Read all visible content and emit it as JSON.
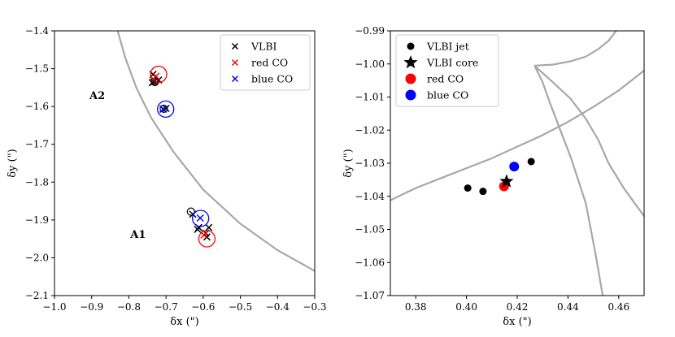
{
  "chart_data": [
    {
      "type": "scatter",
      "xlabel": "δx (\")",
      "ylabel": "δy (\")",
      "xlim": [
        -1.0,
        -0.3
      ],
      "ylim": [
        -2.1,
        -1.4
      ],
      "xticks": [
        "−1.0",
        "−0.9",
        "−0.8",
        "−0.7",
        "−0.6",
        "−0.5",
        "−0.4",
        "−0.3"
      ],
      "yticks": [
        "−1.4",
        "−1.5",
        "−1.6",
        "−1.7",
        "−1.8",
        "−1.9",
        "−2.0",
        "−2.1"
      ],
      "legend_position": "top-right",
      "legend": [
        {
          "label": "VLBI",
          "color": "#000000",
          "marker": "x"
        },
        {
          "label": "red CO",
          "color": "#ff0000",
          "marker": "x"
        },
        {
          "label": "blue CO",
          "color": "#0000ff",
          "marker": "x"
        }
      ],
      "annotations": [
        {
          "text": "A2",
          "x": -0.885,
          "y": -1.58
        },
        {
          "text": "A1",
          "x": -0.775,
          "y": -1.948
        }
      ],
      "series": [
        {
          "name": "VLBI",
          "color": "#000000",
          "marker": "x",
          "points": [
            [
              -0.735,
              -1.515
            ],
            [
              -0.737,
              -1.537
            ],
            [
              -0.733,
              -1.535
            ],
            [
              -0.73,
              -1.532
            ],
            [
              -0.72,
              -1.53
            ],
            [
              -0.707,
              -1.607
            ],
            [
              -0.7,
              -1.605
            ],
            [
              -0.628,
              -1.885
            ],
            [
              -0.615,
              -1.925
            ],
            [
              -0.612,
              -1.92
            ],
            [
              -0.593,
              -1.935
            ],
            [
              -0.59,
              -1.945
            ],
            [
              -0.585,
              -1.92
            ]
          ]
        },
        {
          "name": "VLBI open circles",
          "color": "#000000",
          "marker": "circle",
          "points": [
            [
              -0.633,
              -1.878
            ],
            [
              -0.706,
              -1.606
            ],
            [
              -0.73,
              -1.535
            ]
          ]
        },
        {
          "name": "red CO",
          "color": "#ff0000",
          "marker": "x",
          "points": [
            [
              -0.727,
              -1.52
            ],
            [
              -0.598,
              -1.94
            ]
          ],
          "circle_points": [
            [
              -0.72,
              -1.515
            ],
            [
              -0.59,
              -1.95
            ]
          ]
        },
        {
          "name": "blue CO",
          "color": "#0000ff",
          "marker": "x",
          "points": [
            [
              -0.708,
              -1.607
            ],
            [
              -0.608,
              -1.895
            ]
          ],
          "circle_points": [
            [
              -0.701,
              -1.607
            ],
            [
              -0.607,
              -1.896
            ]
          ]
        }
      ],
      "curves": [
        {
          "name": "critical curve",
          "color": "#a8a8a8",
          "points": [
            [
              -0.83,
              -1.4
            ],
            [
              -0.81,
              -1.47
            ],
            [
              -0.78,
              -1.55
            ],
            [
              -0.74,
              -1.63
            ],
            [
              -0.68,
              -1.72
            ],
            [
              -0.6,
              -1.82
            ],
            [
              -0.5,
              -1.91
            ],
            [
              -0.4,
              -1.98
            ],
            [
              -0.3,
              -2.035
            ]
          ]
        }
      ]
    },
    {
      "type": "scatter",
      "xlabel": "δx (\")",
      "ylabel": "δy (\")",
      "xlim": [
        0.37,
        0.47
      ],
      "ylim": [
        -1.07,
        -0.99
      ],
      "xticks": [
        "0.38",
        "0.40",
        "0.42",
        "0.44",
        "0.46"
      ],
      "yticks": [
        "−0.99",
        "−1.00",
        "−1.01",
        "−1.02",
        "−1.03",
        "−1.04",
        "−1.05",
        "−1.06",
        "−1.07"
      ],
      "legend_position": "top-left",
      "legend": [
        {
          "label": "VLBI jet",
          "color": "#000000",
          "marker": "dot"
        },
        {
          "label": "VLBI core",
          "color": "#000000",
          "marker": "star"
        },
        {
          "label": "red CO",
          "color": "#ff0000",
          "marker": "bigdot"
        },
        {
          "label": "blue CO",
          "color": "#0000ff",
          "marker": "bigdot"
        }
      ],
      "series": [
        {
          "name": "VLBI jet",
          "color": "#000000",
          "marker": "dot",
          "points": [
            [
              0.4005,
              -1.0375
            ],
            [
              0.4065,
              -1.0385
            ],
            [
              0.4255,
              -1.0295
            ]
          ]
        },
        {
          "name": "red CO",
          "color": "#ff0000",
          "marker": "bigdot",
          "points": [
            [
              0.4148,
              -1.037
            ]
          ]
        },
        {
          "name": "blue CO",
          "color": "#0000ff",
          "marker": "bigdot",
          "points": [
            [
              0.4188,
              -1.031
            ]
          ]
        },
        {
          "name": "VLBI core",
          "color": "#000000",
          "marker": "star",
          "points": [
            [
              0.4158,
              -1.0355
            ]
          ]
        }
      ],
      "curves": [
        {
          "name": "caustic lower",
          "color": "#a8a8a8",
          "points": [
            [
              0.37,
              -1.0412
            ],
            [
              0.38,
              -1.0375
            ],
            [
              0.39,
              -1.0345
            ],
            [
              0.4,
              -1.0315
            ],
            [
              0.41,
              -1.0285
            ],
            [
              0.42,
              -1.025
            ],
            [
              0.43,
              -1.0215
            ],
            [
              0.44,
              -1.0175
            ],
            [
              0.45,
              -1.013
            ],
            [
              0.46,
              -1.008
            ],
            [
              0.47,
              -1.002
            ]
          ]
        },
        {
          "name": "caustic cusp",
          "color": "#a8a8a8",
          "points": [
            [
              0.4268,
              -1.0005
            ],
            [
              0.434,
              -1.0055
            ],
            [
              0.441,
              -1.0105
            ],
            [
              0.447,
              -1.0165
            ],
            [
              0.452,
              -1.023
            ],
            [
              0.456,
              -1.03
            ],
            [
              0.462,
              -1.0375
            ],
            [
              0.47,
              -1.046
            ]
          ]
        },
        {
          "name": "caustic lower arm",
          "color": "#a8a8a8",
          "points": [
            [
              0.4268,
              -1.0005
            ],
            [
              0.43,
              -1.0055
            ],
            [
              0.433,
              -1.012
            ],
            [
              0.437,
              -1.02
            ],
            [
              0.441,
              -1.028
            ],
            [
              0.444,
              -1.035
            ],
            [
              0.447,
              -1.042
            ],
            [
              0.449,
              -1.05
            ],
            [
              0.451,
              -1.058
            ],
            [
              0.4528,
              -1.066
            ],
            [
              0.4537,
              -1.07
            ]
          ]
        },
        {
          "name": "caustic upper arm",
          "color": "#a8a8a8",
          "points": [
            [
              0.4268,
              -1.0005
            ],
            [
              0.434,
              -1.0002
            ],
            [
              0.441,
              -0.9992
            ],
            [
              0.447,
              -0.9978
            ],
            [
              0.452,
              -0.9955
            ],
            [
              0.456,
              -0.993
            ],
            [
              0.459,
              -0.99
            ]
          ]
        }
      ]
    }
  ]
}
